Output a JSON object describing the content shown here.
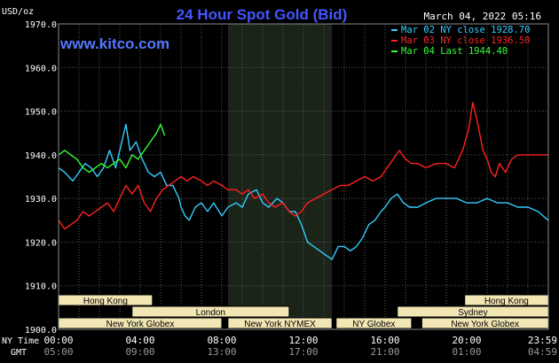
{
  "title": "24 Hour Spot Gold (Bid)",
  "unit_label": "USD/oz",
  "datetime": "March 04, 2022 05:16",
  "watermark": "www.kitco.com",
  "legend": [
    {
      "label": "Mar 02 NY close 1928.70",
      "color": "#33ccff"
    },
    {
      "label": "Mar 03 NY close 1936.50",
      "color": "#ff2020"
    },
    {
      "label": "Mar 04 Last 1944.40",
      "color": "#33ff33"
    }
  ],
  "colors": {
    "background": "#000000",
    "plot_background": "#000000",
    "nymex_shade": "#1b2419",
    "grid": "#5a5a5a",
    "axis_text": "#ffffff",
    "title": "#4455ff",
    "session_bar": "#f2e6b4",
    "watermark": "#5577ff"
  },
  "axis_row_labels": {
    "ny": "NY Time",
    "gmt": "GMT"
  },
  "chart_data": {
    "type": "line",
    "ylim": [
      1900,
      1970
    ],
    "yticks": [
      1900,
      1910,
      1920,
      1930,
      1940,
      1950,
      1960,
      1970
    ],
    "ytick_labels": [
      "1900.0",
      "1910.0",
      "1920.0",
      "1930.0",
      "1940.0",
      "1950.0",
      "1960.0",
      "1970.0"
    ],
    "xlim": [
      0,
      24
    ],
    "xticks": [
      0,
      4,
      8,
      12,
      16,
      20,
      24
    ],
    "ny_tick_labels": [
      "00:00",
      "04:00",
      "08:00",
      "12:00",
      "16:00",
      "20:00",
      "23:59"
    ],
    "gmt_tick_labels": [
      "05:00",
      "09:00",
      "13:00",
      "17:00",
      "21:00",
      "01:00",
      "04:59"
    ],
    "nymex_shade": [
      8.3,
      13.4
    ],
    "grid": true,
    "series": [
      {
        "name": "Mar 02 NY close 1928.70",
        "color": "#33ccff",
        "points": [
          [
            0,
            1937
          ],
          [
            0.3,
            1936
          ],
          [
            0.7,
            1934
          ],
          [
            1.0,
            1936
          ],
          [
            1.3,
            1938
          ],
          [
            1.6,
            1937
          ],
          [
            1.9,
            1935
          ],
          [
            2.2,
            1937
          ],
          [
            2.5,
            1941
          ],
          [
            2.8,
            1937
          ],
          [
            3.0,
            1941
          ],
          [
            3.3,
            1947
          ],
          [
            3.5,
            1941
          ],
          [
            3.8,
            1943
          ],
          [
            4.1,
            1939
          ],
          [
            4.4,
            1936
          ],
          [
            4.7,
            1935
          ],
          [
            5.0,
            1936
          ],
          [
            5.3,
            1933
          ],
          [
            5.6,
            1933
          ],
          [
            5.9,
            1930
          ],
          [
            6.0,
            1928
          ],
          [
            6.2,
            1926
          ],
          [
            6.4,
            1925
          ],
          [
            6.7,
            1928
          ],
          [
            7.0,
            1929
          ],
          [
            7.3,
            1927
          ],
          [
            7.6,
            1929
          ],
          [
            8.0,
            1926
          ],
          [
            8.3,
            1928
          ],
          [
            8.7,
            1929
          ],
          [
            9.0,
            1928
          ],
          [
            9.3,
            1931
          ],
          [
            9.7,
            1932
          ],
          [
            10.0,
            1929
          ],
          [
            10.3,
            1928
          ],
          [
            10.7,
            1930
          ],
          [
            11.0,
            1929
          ],
          [
            11.3,
            1927
          ],
          [
            11.6,
            1927
          ],
          [
            11.9,
            1924
          ],
          [
            12.2,
            1920
          ],
          [
            12.5,
            1919
          ],
          [
            12.8,
            1918
          ],
          [
            13.1,
            1917
          ],
          [
            13.4,
            1916
          ],
          [
            13.7,
            1919
          ],
          [
            14.0,
            1919
          ],
          [
            14.3,
            1918
          ],
          [
            14.6,
            1919
          ],
          [
            14.9,
            1921
          ],
          [
            15.2,
            1924
          ],
          [
            15.5,
            1925
          ],
          [
            15.8,
            1927
          ],
          [
            16.0,
            1928
          ],
          [
            16.3,
            1930
          ],
          [
            16.6,
            1931
          ],
          [
            16.9,
            1929
          ],
          [
            17.2,
            1928
          ],
          [
            17.6,
            1928
          ],
          [
            18.0,
            1929
          ],
          [
            18.5,
            1930
          ],
          [
            19.0,
            1930
          ],
          [
            19.5,
            1930
          ],
          [
            20.0,
            1929
          ],
          [
            20.5,
            1929
          ],
          [
            21.0,
            1930
          ],
          [
            21.5,
            1929
          ],
          [
            22.0,
            1929
          ],
          [
            22.5,
            1928
          ],
          [
            23.0,
            1928
          ],
          [
            23.5,
            1927
          ],
          [
            23.99,
            1925
          ]
        ]
      },
      {
        "name": "Mar 03 NY close 1936.50",
        "color": "#ff2020",
        "points": [
          [
            0,
            1925
          ],
          [
            0.3,
            1923
          ],
          [
            0.6,
            1924
          ],
          [
            0.9,
            1925
          ],
          [
            1.2,
            1927
          ],
          [
            1.5,
            1926
          ],
          [
            1.8,
            1927
          ],
          [
            2.1,
            1928
          ],
          [
            2.4,
            1929
          ],
          [
            2.7,
            1927
          ],
          [
            3.0,
            1930
          ],
          [
            3.3,
            1933
          ],
          [
            3.6,
            1931
          ],
          [
            3.9,
            1933
          ],
          [
            4.2,
            1929
          ],
          [
            4.5,
            1927
          ],
          [
            4.8,
            1930
          ],
          [
            5.1,
            1932
          ],
          [
            5.4,
            1933
          ],
          [
            5.7,
            1934
          ],
          [
            6.0,
            1935
          ],
          [
            6.3,
            1934
          ],
          [
            6.6,
            1935
          ],
          [
            7.0,
            1934
          ],
          [
            7.3,
            1933
          ],
          [
            7.6,
            1934
          ],
          [
            8.0,
            1933
          ],
          [
            8.3,
            1932
          ],
          [
            8.7,
            1932
          ],
          [
            9.0,
            1931
          ],
          [
            9.3,
            1932
          ],
          [
            9.6,
            1930
          ],
          [
            10.0,
            1931
          ],
          [
            10.3,
            1929
          ],
          [
            10.6,
            1928
          ],
          [
            11.0,
            1929
          ],
          [
            11.3,
            1927
          ],
          [
            11.6,
            1926
          ],
          [
            11.9,
            1927
          ],
          [
            12.2,
            1929
          ],
          [
            12.6,
            1930
          ],
          [
            13.0,
            1931
          ],
          [
            13.4,
            1932
          ],
          [
            13.8,
            1933
          ],
          [
            14.2,
            1933
          ],
          [
            14.6,
            1934
          ],
          [
            15.0,
            1935
          ],
          [
            15.4,
            1934
          ],
          [
            15.8,
            1935
          ],
          [
            16.1,
            1937
          ],
          [
            16.4,
            1939
          ],
          [
            16.7,
            1941
          ],
          [
            17.0,
            1939
          ],
          [
            17.3,
            1938
          ],
          [
            17.6,
            1938
          ],
          [
            18.0,
            1937
          ],
          [
            18.5,
            1938
          ],
          [
            19.0,
            1938
          ],
          [
            19.4,
            1937
          ],
          [
            19.8,
            1941
          ],
          [
            20.1,
            1946
          ],
          [
            20.3,
            1952
          ],
          [
            20.5,
            1948
          ],
          [
            20.8,
            1941
          ],
          [
            21.0,
            1939
          ],
          [
            21.2,
            1936
          ],
          [
            21.4,
            1935
          ],
          [
            21.6,
            1938
          ],
          [
            21.9,
            1936
          ],
          [
            22.2,
            1939
          ],
          [
            22.5,
            1940
          ],
          [
            23.0,
            1940
          ],
          [
            23.5,
            1940
          ],
          [
            23.99,
            1940
          ]
        ]
      },
      {
        "name": "Mar 04 Last 1944.40",
        "color": "#33ff33",
        "points": [
          [
            0,
            1940
          ],
          [
            0.3,
            1941
          ],
          [
            0.6,
            1940
          ],
          [
            0.9,
            1939
          ],
          [
            1.2,
            1937
          ],
          [
            1.5,
            1936
          ],
          [
            1.8,
            1937
          ],
          [
            2.1,
            1938
          ],
          [
            2.4,
            1937
          ],
          [
            2.7,
            1938
          ],
          [
            3.0,
            1939
          ],
          [
            3.3,
            1937
          ],
          [
            3.6,
            1940
          ],
          [
            3.9,
            1939
          ],
          [
            4.2,
            1941
          ],
          [
            4.5,
            1943
          ],
          [
            4.8,
            1945
          ],
          [
            5.0,
            1947
          ],
          [
            5.2,
            1944.4
          ]
        ]
      }
    ]
  },
  "sessions": [
    {
      "name": "Hong Kong",
      "start": 0,
      "end": 4.6,
      "row": 0
    },
    {
      "name": "London",
      "start": 3.6,
      "end": 11.3,
      "row": 1
    },
    {
      "name": "New York Globex",
      "start": 0,
      "end": 8.0,
      "row": 2
    },
    {
      "name": "New York NYMEX",
      "start": 8.3,
      "end": 13.4,
      "row": 2
    },
    {
      "name": "NY Globex",
      "start": 13.6,
      "end": 17.3,
      "row": 2
    },
    {
      "name": "Hong Kong",
      "start": 19.9,
      "end": 24,
      "row": 0
    },
    {
      "name": "Sydney",
      "start": 16.6,
      "end": 24,
      "row": 1
    },
    {
      "name": "New York Globex",
      "start": 17.8,
      "end": 24,
      "row": 2
    }
  ]
}
